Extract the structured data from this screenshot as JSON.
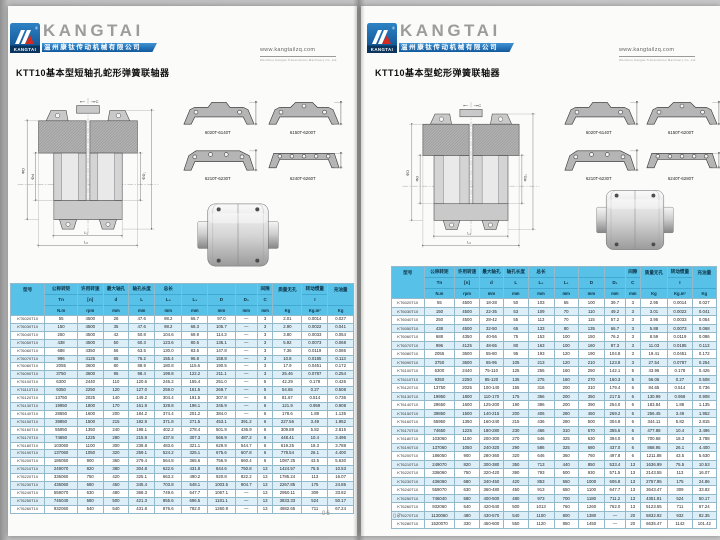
{
  "brand": {
    "wordmark": "KANGTAI",
    "logo_caption": "KANGTAI",
    "logo_registered": "®",
    "company_cn": "温州康钛传动机械有限公司",
    "website": "www.kangtailzq.com",
    "website_sub": "Wenzhou Kangtai Transmission Machinery Co.,Ltd",
    "accent_blue": "#10589c",
    "table_header_blue": "#57c1e8"
  },
  "dims": {
    "phiD": "ΦD",
    "phid": "Φd",
    "phiD1": "ΦD₁",
    "L1": "L₁",
    "L0": "L₀",
    "C": "C"
  },
  "table_columns": [
    {
      "n": "型号",
      "s": "",
      "u": ""
    },
    {
      "n": "公称转矩",
      "s": "Tn",
      "u": "N.m"
    },
    {
      "n": "许用转速",
      "s": "[n]",
      "u": "rpm"
    },
    {
      "n": "最大轴孔",
      "s": "d",
      "u": "mm"
    },
    {
      "n": "轴孔长度",
      "s": "L",
      "u": "mm"
    },
    {
      "n": "总长",
      "s": "L₀",
      "u": "mm"
    },
    {
      "n": "",
      "s": "L₁",
      "u": "mm"
    },
    {
      "n": "",
      "s": "D",
      "u": "mm"
    },
    {
      "n": "",
      "s": "D₁",
      "u": "mm"
    },
    {
      "n": "间隙",
      "s": "C",
      "u": "mm"
    },
    {
      "n": "质量无孔",
      "s": "",
      "u": "Kg"
    },
    {
      "n": "转动惯量",
      "s": "I",
      "u": "Kg.m²"
    },
    {
      "n": "充油量",
      "s": "",
      "u": "Kg"
    }
  ],
  "page_left": {
    "page_number": "06",
    "title": "KTT10基本型短轴孔蛇形弹簧联轴器",
    "profiles": [
      "6020T-6140T",
      "6150T-6200T",
      "6210T-6230T",
      "6240T-6260T"
    ],
    "rows": [
      [
        "KT6020T10",
        "55",
        "4500",
        "28",
        "47.6",
        "98.2",
        "66.7",
        "97.0",
        "—",
        "3",
        "2.01",
        "0.0014",
        "0.027"
      ],
      [
        "KT6030T10",
        "150",
        "4500",
        "35",
        "47.6",
        "98.2",
        "68.3",
        "105.7",
        "—",
        "3",
        "2.90",
        "0.0022",
        "0.041"
      ],
      [
        "KT6040T10",
        "250",
        "4500",
        "42",
        "50.8",
        "104.6",
        "69.9",
        "114.3",
        "—",
        "3",
        "3.80",
        "0.0033",
        "0.054"
      ],
      [
        "KT6050T10",
        "438",
        "4500",
        "50",
        "60.3",
        "123.6",
        "80.5",
        "135.1",
        "—",
        "3",
        "5.92",
        "0.0073",
        "0.068"
      ],
      [
        "KT6060T10",
        "688",
        "4350",
        "56",
        "63.5",
        "130.0",
        "83.5",
        "147.8",
        "—",
        "3",
        "7.36",
        "0.0119",
        "0.086"
      ],
      [
        "KT6070T10",
        "996",
        "4125",
        "65",
        "76.2",
        "155.4",
        "96.8",
        "158.8",
        "—",
        "3",
        "10.8",
        "0.0185",
        "0.113"
      ],
      [
        "KT6080T10",
        "2055",
        "3600",
        "80",
        "88.9",
        "180.8",
        "115.6",
        "190.5",
        "—",
        "3",
        "17.9",
        "0.0451",
        "0.172"
      ],
      [
        "KT6090T10",
        "3750",
        "3600",
        "95",
        "98.4",
        "199.8",
        "122.2",
        "211.1",
        "—",
        "3",
        "25.46",
        "0.0787",
        "0.254"
      ],
      [
        "KT6100T10",
        "6300",
        "2440",
        "110",
        "120.6",
        "246.2",
        "155.4",
        "251.0",
        "—",
        "5",
        "42.29",
        "0.178",
        "0.426"
      ],
      [
        "KT6110T10",
        "9350",
        "2250",
        "120",
        "127.0",
        "259.0",
        "161.5",
        "269.7",
        "—",
        "5",
        "54.65",
        "0.27",
        "0.508"
      ],
      [
        "KT6120T10",
        "13750",
        "2025",
        "140",
        "149.2",
        "304.4",
        "191.5",
        "307.8",
        "—",
        "6",
        "81.67",
        "0.514",
        "0.736"
      ],
      [
        "KT6130T10",
        "19950",
        "1800",
        "170",
        "161.9",
        "329.8",
        "196.1",
        "345.9",
        "—",
        "6",
        "121.9",
        "0.959",
        "0.908"
      ],
      [
        "KT6140T10",
        "28650",
        "1600",
        "200",
        "184.2",
        "374.4",
        "201.2",
        "384.0",
        "—",
        "6",
        "178.6",
        "1.88",
        "1.135"
      ],
      [
        "KT6150T10",
        "39850",
        "1500",
        "215",
        "182.9",
        "371.8",
        "271.5",
        "453.1",
        "391.2",
        "6",
        "227.56",
        "3.49",
        "1.952"
      ],
      [
        "KT6160T10",
        "55950",
        "1350",
        "240",
        "198.1",
        "402.2",
        "278.4",
        "501.9",
        "436.9",
        "6",
        "309.88",
        "5.82",
        "2.815"
      ],
      [
        "KT6170T10",
        "74650",
        "1225",
        "280",
        "215.9",
        "437.8",
        "307.3",
        "566.9",
        "487.2",
        "6",
        "448.41",
        "10.4",
        "3.496"
      ],
      [
        "KT6180T10",
        "103060",
        "1100",
        "300",
        "238.8",
        "483.6",
        "321.1",
        "629.9",
        "544.7",
        "6",
        "619.25",
        "18.3",
        "3.788"
      ],
      [
        "KT6190T10",
        "137060",
        "1050",
        "320",
        "259.1",
        "524.2",
        "325.1",
        "675.6",
        "607.8",
        "6",
        "778.54",
        "26.1",
        "4.400"
      ],
      [
        "KT6200T10",
        "186050",
        "900",
        "360",
        "279.4",
        "564.8",
        "365.6",
        "756.9",
        "660.4",
        "6",
        "1087.25",
        "43.5",
        "5.630"
      ],
      [
        "KT6210T10",
        "249070",
        "820",
        "380",
        "304.8",
        "622.6",
        "431.8",
        "844.6",
        "750.8",
        "13",
        "1424.57",
        "75.5",
        "10.53"
      ],
      [
        "KT6220T10",
        "336060",
        "750",
        "420",
        "325.1",
        "663.2",
        "490.2",
        "920.8",
        "822.2",
        "13",
        "1785.24",
        "113",
        "16.07"
      ],
      [
        "KT6230T10",
        "436060",
        "680",
        "450",
        "345.4",
        "703.8",
        "548.1",
        "1003.5",
        "904.7",
        "13",
        "2267.85",
        "175",
        "24.86"
      ],
      [
        "KT6240T10",
        "559070",
        "630",
        "480",
        "368.3",
        "749.6",
        "647.7",
        "1067.1",
        "—",
        "13",
        "2950.11",
        "309",
        "33.82"
      ],
      [
        "KT6250T10",
        "746040",
        "580",
        "500",
        "421.3",
        "855.6",
        "696.5",
        "1181.1",
        "—",
        "13",
        "3833.33",
        "524",
        "50.17"
      ],
      [
        "KT6260T10",
        "932060",
        "540",
        "540",
        "431.8",
        "876.6",
        "782.0",
        "1260.9",
        "—",
        "13",
        "4682.65",
        "711",
        "67.24"
      ]
    ]
  },
  "page_right": {
    "page_number": "07",
    "title": "KTT10基本型蛇形弹簧联轴器",
    "profiles": [
      "6020T-6140T",
      "6150T-6200T",
      "6210T-6230T",
      "6240T-6280T"
    ],
    "rows": [
      [
        "KT6020T10",
        "55",
        "4500",
        "18-28",
        "50",
        "103",
        "65",
        "100",
        "39.7",
        "3",
        "2.95",
        "0.0014",
        "0.027"
      ],
      [
        "KT6030T10",
        "150",
        "4500",
        "22-35",
        "53",
        "109",
        "70",
        "110",
        "49.2",
        "3",
        "3.01",
        "0.0022",
        "0.041"
      ],
      [
        "KT6040T10",
        "250",
        "4500",
        "28-42",
        "55",
        "113",
        "70",
        "115",
        "57.2",
        "3",
        "3.95",
        "0.0033",
        "0.054"
      ],
      [
        "KT6050T10",
        "438",
        "4500",
        "32-50",
        "65",
        "133",
        "80",
        "135",
        "66.7",
        "3",
        "5.88",
        "0.0073",
        "0.068"
      ],
      [
        "KT6060T10",
        "688",
        "4350",
        "40-56",
        "75",
        "153",
        "100",
        "150",
        "76.2",
        "3",
        "8.59",
        "0.0119",
        "0.086"
      ],
      [
        "KT6070T10",
        "996",
        "4125",
        "48-65",
        "80",
        "163",
        "100",
        "160",
        "87.3",
        "3",
        "11.03",
        "0.0185",
        "0.113"
      ],
      [
        "KT6080T10",
        "2055",
        "3600",
        "55-80",
        "95",
        "193",
        "120",
        "190",
        "104.8",
        "3",
        "19.41",
        "0.0451",
        "0.172"
      ],
      [
        "KT6090T10",
        "3750",
        "3600",
        "65-95",
        "105",
        "213",
        "120",
        "210",
        "123.8",
        "3",
        "27.54",
        "0.0787",
        "0.254"
      ],
      [
        "KT6100T10",
        "6300",
        "2440",
        "75-110",
        "125",
        "255",
        "160",
        "250",
        "142.1",
        "5",
        "43.96",
        "0.178",
        "0.426"
      ],
      [
        "KT6110T10",
        "9350",
        "2250",
        "85-120",
        "135",
        "275",
        "160",
        "270",
        "160.3",
        "5",
        "56.05",
        "0.27",
        "0.508"
      ],
      [
        "KT6120T10",
        "13750",
        "2025",
        "100-140",
        "155",
        "316",
        "200",
        "310",
        "179.4",
        "6",
        "84.65",
        "0.514",
        "0.736"
      ],
      [
        "KT6130T10",
        "19950",
        "1800",
        "110-170",
        "175",
        "356",
        "200",
        "350",
        "217.5",
        "6",
        "130.99",
        "0.959",
        "0.908"
      ],
      [
        "KT6140T10",
        "28650",
        "1600",
        "125-200",
        "190",
        "386",
        "200",
        "390",
        "254.0",
        "6",
        "183.84",
        "1.88",
        "1.135"
      ],
      [
        "KT6150T10",
        "39850",
        "1500",
        "140-215",
        "200",
        "406",
        "280",
        "450",
        "269.2",
        "6",
        "256.45",
        "3.49",
        "1.952"
      ],
      [
        "KT6160T10",
        "55950",
        "1350",
        "160-240",
        "215",
        "436",
        "280",
        "500",
        "304.8",
        "6",
        "344.11",
        "5.82",
        "2.815"
      ],
      [
        "KT6170T10",
        "74650",
        "1225",
        "180-280",
        "230",
        "466",
        "310",
        "570",
        "355.6",
        "6",
        "477.88",
        "10.4",
        "3.496"
      ],
      [
        "KT6180T10",
        "103060",
        "1100",
        "200-300",
        "270",
        "546",
        "325",
        "630",
        "394.0",
        "6",
        "700.68",
        "18.3",
        "3.788"
      ],
      [
        "KT6190T10",
        "137060",
        "1050",
        "240-320",
        "290",
        "586",
        "325",
        "680",
        "437.0",
        "6",
        "868.95",
        "26.1",
        "4.400"
      ],
      [
        "KT6200T10",
        "186050",
        "900",
        "280-360",
        "320",
        "646",
        "360",
        "760",
        "497.8",
        "6",
        "1211.88",
        "43.5",
        "5.630"
      ],
      [
        "KT6210T10",
        "249070",
        "820",
        "300-380",
        "350",
        "713",
        "440",
        "850",
        "533.4",
        "13",
        "1636.99",
        "75.5",
        "10.53"
      ],
      [
        "KT6220T10",
        "336060",
        "750",
        "320-420",
        "390",
        "793",
        "500",
        "930",
        "571.5",
        "13",
        "2143.55",
        "113",
        "16.07"
      ],
      [
        "KT6230T10",
        "436060",
        "680",
        "340-450",
        "420",
        "853",
        "550",
        "1000",
        "606.8",
        "13",
        "2757.95",
        "175",
        "24.86"
      ],
      [
        "KT6240T10",
        "559070",
        "630",
        "360-480",
        "450",
        "913",
        "650",
        "1100",
        "647.7",
        "13",
        "3643.47",
        "309",
        "33.82"
      ],
      [
        "KT6250T10",
        "746040",
        "580",
        "400-500",
        "480",
        "973",
        "700",
        "1180",
        "711.2",
        "13",
        "4351.91",
        "524",
        "50.17"
      ],
      [
        "KT6260T10",
        "932060",
        "540",
        "420-540",
        "500",
        "1013",
        "760",
        "1260",
        "762.0",
        "13",
        "5123.55",
        "711",
        "67.24"
      ],
      [
        "KT6270T10",
        "1130060",
        "480",
        "430-570",
        "540",
        "1100",
        "800",
        "1380",
        "—",
        "20",
        "5832.92",
        "932",
        "82.35"
      ],
      [
        "KT6280T10",
        "1520070",
        "330",
        "450-600",
        "550",
        "1120",
        "850",
        "1450",
        "—",
        "20",
        "6635.47",
        "1142",
        "101.42"
      ]
    ]
  }
}
